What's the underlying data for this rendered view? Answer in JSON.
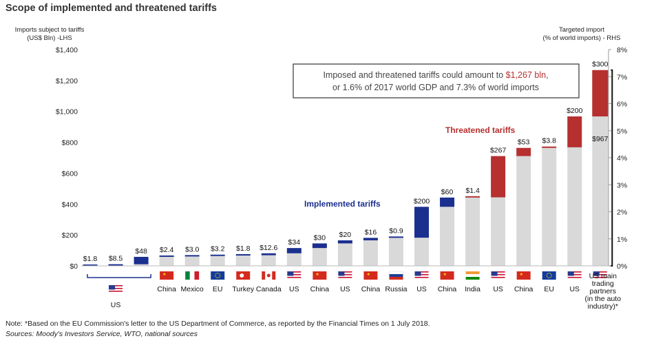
{
  "title": "Scope of implemented and threatened tariffs",
  "note": "Note: *Based on the EU Commission's letter to the US Department of Commerce, as reported by the Financial Times on 1 July 2018.",
  "sources": "Sources: Moody's Investors Service, WTO, national sources",
  "callout": {
    "line1_prefix": "Imposed and threatened tariffs could amount to ",
    "line1_highlight": "$1,267 bln",
    "line1_suffix": ",",
    "line2": "or 1.6% of 2017 world GDP and 7.3% of world imports"
  },
  "chart_data": {
    "type": "bar",
    "title": "Scope of implemented and threatened tariffs",
    "ylabel_left": "Imports subject to tariffs\n(US$ Bln) -LHS",
    "ylabel_right": "Targeted import\n(% of world imports) - RHS",
    "ylim_left": [
      0,
      1400
    ],
    "ylim_right": [
      0,
      8
    ],
    "left_ticks": [
      "$0",
      "$200",
      "$400",
      "$600",
      "$800",
      "$1,000",
      "$1,200",
      "$1,400"
    ],
    "right_ticks": [
      "0%",
      "1%",
      "2%",
      "3%",
      "4%",
      "5%",
      "6%",
      "7%",
      "8%"
    ],
    "series": [
      {
        "name": "Implemented tariffs",
        "color": "#1b2f8f"
      },
      {
        "name": "Threatened tariffs",
        "color": "#b5302f"
      },
      {
        "name": "",
        "color": "#d9d9d9"
      }
    ],
    "bars": [
      {
        "label": "",
        "base": 0,
        "value": 1.8,
        "kind": "implemented",
        "value_label": "$1.8"
      },
      {
        "label": "",
        "base": 1.8,
        "value": 8.5,
        "kind": "implemented",
        "value_label": "$8.5"
      },
      {
        "label": "",
        "base": 10.3,
        "value": 48,
        "kind": "implemented",
        "value_label": "$48"
      },
      {
        "label": "China",
        "base": 58.3,
        "value": 2.4,
        "kind": "implemented",
        "value_label": "$2.4"
      },
      {
        "label": "Mexico",
        "base": 60.7,
        "value": 3.0,
        "kind": "implemented",
        "value_label": "$3.0"
      },
      {
        "label": "EU",
        "base": 63.7,
        "value": 3.2,
        "kind": "implemented",
        "value_label": "$3.2"
      },
      {
        "label": "Turkey",
        "base": 66.9,
        "value": 1.8,
        "kind": "implemented",
        "value_label": "$1.8"
      },
      {
        "label": "Canada",
        "base": 68.7,
        "value": 12.6,
        "kind": "implemented",
        "value_label": "$12.6"
      },
      {
        "label": "US",
        "base": 81.3,
        "value": 34,
        "kind": "implemented",
        "value_label": "$34"
      },
      {
        "label": "China",
        "base": 115.3,
        "value": 30,
        "kind": "implemented",
        "value_label": "$30"
      },
      {
        "label": "US",
        "base": 145.3,
        "value": 20,
        "kind": "implemented",
        "value_label": "$20"
      },
      {
        "label": "China",
        "base": 165.3,
        "value": 16,
        "kind": "implemented",
        "value_label": "$16"
      },
      {
        "label": "Russia",
        "base": 181.3,
        "value": 0.9,
        "kind": "implemented",
        "value_label": "$0.9"
      },
      {
        "label": "US",
        "base": 182.2,
        "value": 200,
        "kind": "implemented",
        "value_label": "$200"
      },
      {
        "label": "China",
        "base": 382.2,
        "value": 60,
        "kind": "implemented",
        "value_label": "$60"
      },
      {
        "label": "India",
        "base": 442.2,
        "value": 1.4,
        "kind": "threatened",
        "value_label": "$1.4"
      },
      {
        "label": "US",
        "base": 443.6,
        "value": 267,
        "kind": "threatened",
        "value_label": "$267"
      },
      {
        "label": "China",
        "base": 710.6,
        "value": 53,
        "kind": "threatened",
        "value_label": "$53"
      },
      {
        "label": "EU",
        "base": 763.6,
        "value": 3.8,
        "kind": "threatened",
        "value_label": "$3.8"
      },
      {
        "label": "US",
        "base": 767.4,
        "value": 200,
        "kind": "threatened",
        "value_label": "$200"
      },
      {
        "label": "US main trading partners (in the auto industry)*",
        "base": 967.4,
        "value": 300,
        "kind": "threatened",
        "value_label": "$300",
        "base_label": "$967"
      }
    ],
    "group_label": "US",
    "legend_implemented": "Implemented tariffs",
    "legend_threatened": "Threatened tariffs"
  },
  "flags": [
    "us",
    "us",
    "us",
    "china",
    "mexico",
    "eu",
    "turkey",
    "canada",
    "us",
    "china",
    "us",
    "china",
    "russia",
    "us",
    "china",
    "india",
    "us",
    "china",
    "eu",
    "us",
    "us"
  ]
}
